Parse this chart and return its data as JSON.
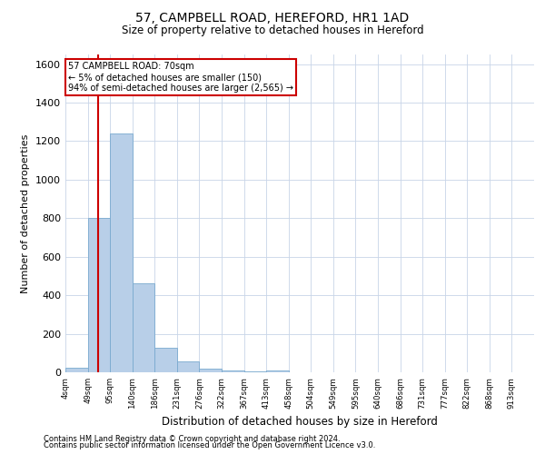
{
  "title_line1": "57, CAMPBELL ROAD, HEREFORD, HR1 1AD",
  "title_line2": "Size of property relative to detached houses in Hereford",
  "xlabel": "Distribution of detached houses by size in Hereford",
  "ylabel": "Number of detached properties",
  "footer_line1": "Contains HM Land Registry data © Crown copyright and database right 2024.",
  "footer_line2": "Contains public sector information licensed under the Open Government Licence v3.0.",
  "bin_labels": [
    "4sqm",
    "49sqm",
    "95sqm",
    "140sqm",
    "186sqm",
    "231sqm",
    "276sqm",
    "322sqm",
    "367sqm",
    "413sqm",
    "458sqm",
    "504sqm",
    "549sqm",
    "595sqm",
    "640sqm",
    "686sqm",
    "731sqm",
    "777sqm",
    "822sqm",
    "868sqm",
    "913sqm"
  ],
  "bar_values": [
    25,
    800,
    1240,
    460,
    125,
    55,
    20,
    10,
    5,
    8,
    0,
    0,
    0,
    0,
    0,
    0,
    0,
    0,
    0,
    0,
    0
  ],
  "bar_color": "#b8cfe8",
  "bar_edge_color": "#7aaacf",
  "ylim": [
    0,
    1650
  ],
  "yticks": [
    0,
    200,
    400,
    600,
    800,
    1000,
    1200,
    1400,
    1600
  ],
  "vline_x": 1.47,
  "vline_color": "#cc0000",
  "annotation_line1": "57 CAMPBELL ROAD: 70sqm",
  "annotation_line2": "← 5% of detached houses are smaller (150)",
  "annotation_line3": "94% of semi-detached houses are larger (2,565) →",
  "annotation_box_color": "#ffffff",
  "annotation_box_edge": "#cc0000",
  "background_color": "#ffffff",
  "grid_color": "#c8d4e8"
}
